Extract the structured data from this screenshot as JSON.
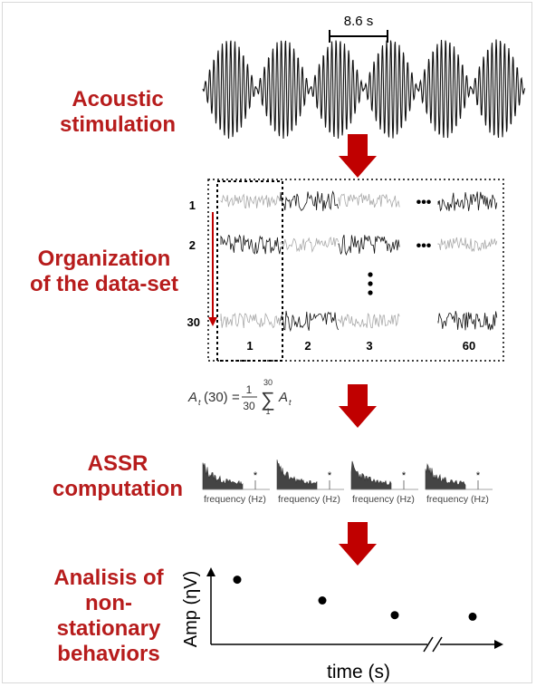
{
  "steps": [
    {
      "line1": "Acoustic",
      "line2": "stimulation"
    },
    {
      "line1": "Organization",
      "line2": "of the data-set"
    },
    {
      "line1": "ASSR",
      "line2": "computation"
    },
    {
      "line1": "Analisis of",
      "line2": "non-",
      "line3": "stationary",
      "line4": "behaviors"
    }
  ],
  "stimulus": {
    "period_label": "8.6 s",
    "cycles": 6
  },
  "dataset": {
    "row_labels": [
      "1",
      "2",
      "30"
    ],
    "col_labels": [
      "1",
      "2",
      "3",
      "60"
    ],
    "ellipsis_h": "•••",
    "ellipsis_v": "⋮"
  },
  "formula": {
    "lhs": "A",
    "sub": "t",
    "arg": "(30)",
    "num": "1",
    "den": "30",
    "sum_top": "30",
    "sum_bottom": "1"
  },
  "spectra": {
    "label": "frequency (Hz)",
    "peak_marker": "*",
    "count": 4
  },
  "chart": {
    "ylabel": "Amp (ηV)",
    "xlabel": "time (s)",
    "points": [
      0.84,
      0.57,
      0.38,
      0.36
    ]
  },
  "colors": {
    "accent": "#b71c1c",
    "arrow": "#c00000",
    "dark_trace": "#111111",
    "light_trace": "#a9a9a9"
  }
}
